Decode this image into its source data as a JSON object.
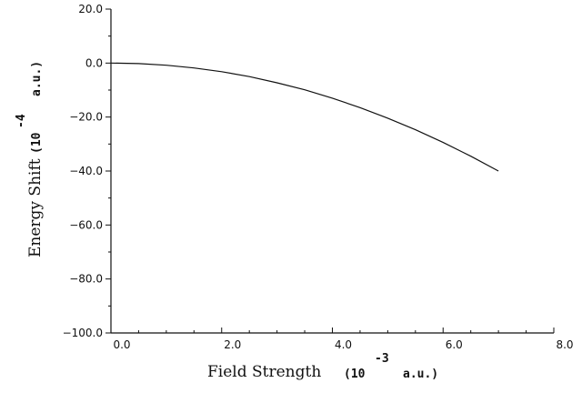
{
  "chart_data": {
    "type": "line",
    "xlabel": "Field Strength",
    "xlabel_unit_prefix": "(10",
    "xlabel_unit_exp": "-3",
    "xlabel_unit_suffix": "a.u.)",
    "ylabel": "Energy Shift",
    "ylabel_unit_prefix": "(10",
    "ylabel_unit_exp": "-4",
    "ylabel_unit_suffix": "a.u.)",
    "xlim": [
      0.0,
      8.0
    ],
    "ylim": [
      -100.0,
      20.0
    ],
    "x_ticks": [
      0.0,
      2.0,
      4.0,
      6.0,
      8.0
    ],
    "x_tick_labels": [
      "0.0",
      "2.0",
      "4.0",
      "6.0",
      "8.0"
    ],
    "y_ticks": [
      -100.0,
      -80.0,
      -60.0,
      -40.0,
      -20.0,
      0.0,
      20.0
    ],
    "y_tick_labels": [
      "−100.0",
      "−80.0",
      "−60.0",
      "−40.0",
      "−20.0",
      "0.0",
      "20.0"
    ],
    "grid": false,
    "series": [
      {
        "x": [
          0.0,
          0.5,
          1.0,
          1.5,
          2.0,
          2.5,
          3.0,
          3.5,
          4.0,
          4.5,
          5.0,
          5.5,
          6.0,
          6.5,
          7.0
        ],
        "y": [
          0.0,
          -0.2,
          -0.8,
          -1.8,
          -3.2,
          -5.0,
          -7.3,
          -9.9,
          -13.0,
          -16.5,
          -20.4,
          -24.7,
          -29.4,
          -34.5,
          -40.0
        ]
      }
    ]
  }
}
